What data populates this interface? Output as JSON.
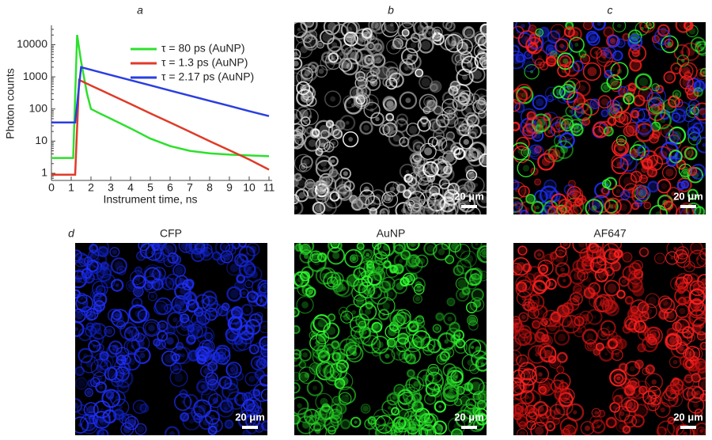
{
  "panel_labels": [
    "a",
    "b",
    "c",
    "d"
  ],
  "image_titles": [
    "CFP",
    "AuNP",
    "AF647"
  ],
  "scale_bars": [
    "20 μm",
    "20 μm",
    "20 μm",
    "20 μm",
    "20 μm"
  ],
  "chart_data": {
    "type": "line",
    "x_label": "Instrument time, ns",
    "y_label": "Photon counts",
    "yscale": "log",
    "xlim": [
      0,
      11
    ],
    "xticks": [
      0,
      1,
      2,
      3,
      4,
      5,
      6,
      7,
      8,
      9,
      10,
      11
    ],
    "ylim": [
      0.6,
      40000
    ],
    "yticks": [
      1,
      10,
      100,
      1000,
      10000
    ],
    "series": [
      {
        "name": "τ = 80 ps (AuNP)",
        "color": "#2de02d",
        "x": [
          0,
          1.1,
          1.3,
          1.5,
          1.8,
          2.0,
          2.5,
          3,
          4,
          5,
          6,
          7,
          8,
          9,
          10,
          11
        ],
        "values": [
          3,
          3,
          20000,
          3000,
          300,
          100,
          70,
          50,
          25,
          12,
          7,
          5,
          4.2,
          3.8,
          3.6,
          3.4
        ]
      },
      {
        "name": "τ = 1.3 ps (AuNP)",
        "color": "#e03a28",
        "x": [
          0,
          1.2,
          1.4,
          2,
          3,
          4,
          5,
          6,
          7,
          8,
          9,
          10,
          11
        ],
        "values": [
          0.9,
          0.9,
          800,
          537,
          277,
          143,
          73,
          38,
          19.6,
          10,
          5.2,
          2.7,
          1.3
        ]
      },
      {
        "name": "τ = 2.17 ps (AuNP)",
        "color": "#2a3ee0",
        "x": [
          0,
          1.2,
          1.5,
          2,
          3,
          4,
          5,
          6,
          7,
          8,
          9,
          10,
          11
        ],
        "values": [
          38,
          38,
          2000,
          1660,
          1140,
          790,
          545,
          375,
          260,
          180,
          125,
          86,
          60
        ]
      }
    ]
  }
}
